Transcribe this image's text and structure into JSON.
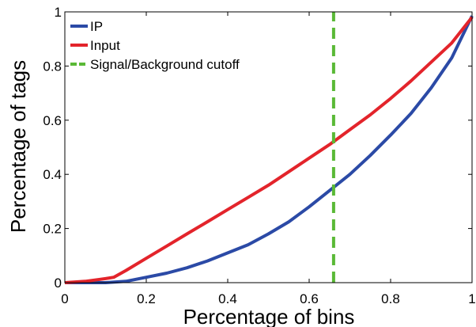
{
  "chart_data": {
    "type": "line",
    "title": "",
    "xlabel": "Percentage of bins",
    "ylabel": "Percentage of tags",
    "xlim": [
      0,
      1
    ],
    "ylim": [
      0,
      1
    ],
    "grid": false,
    "legend_position": "top-left",
    "xticks": [
      "0",
      "0.2",
      "0.4",
      "0.6",
      "0.8",
      "1"
    ],
    "yticks": [
      "0",
      "0.2",
      "0.4",
      "0.6",
      "0.8",
      "1"
    ],
    "series": [
      {
        "name": "IP",
        "color": "#2b4aa6",
        "style": "solid",
        "x": [
          0,
          0.1,
          0.15,
          0.2,
          0.25,
          0.3,
          0.35,
          0.4,
          0.45,
          0.5,
          0.55,
          0.6,
          0.65,
          0.7,
          0.75,
          0.8,
          0.85,
          0.9,
          0.95,
          1.0
        ],
        "y": [
          0,
          0,
          0.005,
          0.02,
          0.035,
          0.055,
          0.08,
          0.11,
          0.14,
          0.18,
          0.225,
          0.28,
          0.34,
          0.4,
          0.47,
          0.545,
          0.625,
          0.72,
          0.83,
          0.985
        ]
      },
      {
        "name": "Input",
        "color": "#e3242b",
        "style": "solid",
        "x": [
          0,
          0.05,
          0.1,
          0.12,
          0.15,
          0.2,
          0.25,
          0.3,
          0.35,
          0.4,
          0.45,
          0.5,
          0.55,
          0.6,
          0.65,
          0.7,
          0.75,
          0.8,
          0.85,
          0.9,
          0.95,
          1.0
        ],
        "y": [
          0,
          0.005,
          0.015,
          0.02,
          0.045,
          0.09,
          0.135,
          0.18,
          0.225,
          0.27,
          0.315,
          0.36,
          0.41,
          0.46,
          0.51,
          0.565,
          0.62,
          0.68,
          0.745,
          0.815,
          0.885,
          0.98
        ]
      },
      {
        "name": "Signal/Background cutoff",
        "color": "#5ab936",
        "style": "dashed",
        "x": [
          0.66,
          0.66
        ],
        "y": [
          0,
          1
        ]
      }
    ]
  }
}
